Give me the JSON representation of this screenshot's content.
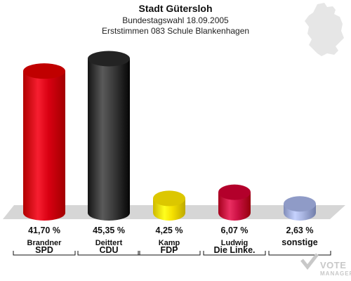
{
  "header": {
    "title": "Stadt Gütersloh",
    "subtitle1": "Bundestagswahl 18.09.2005",
    "subtitle2": "Erststimmen 083 Schule Blankenhagen"
  },
  "watermark": {
    "line1": "VOTE",
    "line2": "MANAGER"
  },
  "chart_data": {
    "type": "bar",
    "title": "Stadt Gütersloh",
    "subtitle": "Bundestagswahl 18.09.2005 — Erststimmen 083 Schule Blankenhagen",
    "categories": [
      "SPD",
      "CDU",
      "FDP",
      "Die Linke.",
      "sonstige"
    ],
    "candidates": [
      "Brandner",
      "Deittert",
      "Kamp",
      "Ludwig",
      ""
    ],
    "values": [
      41.7,
      45.35,
      4.25,
      6.07,
      2.63
    ],
    "labels": [
      "41,70 %",
      "45,35 %",
      "4,25 %",
      "6,07 %",
      "2,63 %"
    ],
    "colors": [
      "#d90012",
      "#3c3c3c",
      "#f5e000",
      "#cc1144",
      "#a8b4e0"
    ],
    "ylim": [
      0,
      50
    ],
    "grid": false,
    "legend": "none"
  }
}
